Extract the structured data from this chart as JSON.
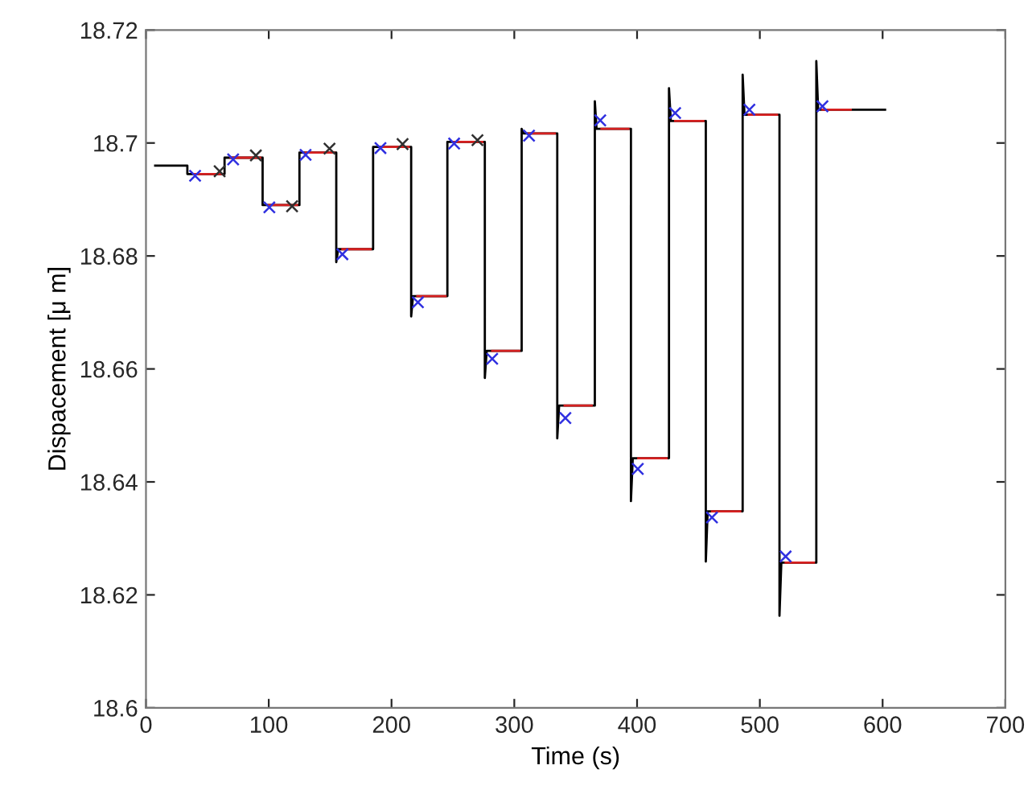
{
  "chart_data": {
    "type": "line",
    "xlabel": "Time (s)",
    "ylabel": "Dispacement [μ m]",
    "xlim": [
      0,
      700
    ],
    "ylim": [
      18.6,
      18.72
    ],
    "xticks": [
      0,
      100,
      200,
      300,
      400,
      500,
      600,
      700
    ],
    "yticks": [
      18.6,
      18.62,
      18.64,
      18.66,
      18.68,
      18.7,
      18.72
    ],
    "grid": false,
    "legend": false,
    "series": [
      {
        "color": "#000000",
        "marker": "none",
        "line_style": "solid",
        "x": [
          7.5,
          33.7,
          33.7,
          64,
          64,
          95,
          95,
          96.5,
          125,
          125,
          155,
          155,
          156.5,
          185,
          185,
          216,
          216,
          217.5,
          245.5,
          245.5,
          276,
          276,
          277.5,
          306,
          306,
          307.5,
          335,
          335,
          336.5,
          365.6,
          365.6,
          367,
          395,
          395,
          396.5,
          426,
          426,
          427.5,
          456,
          456,
          457.5,
          486,
          486,
          487.5,
          516,
          516,
          517.5,
          546,
          546,
          547.5,
          602
        ],
        "values": [
          18.696,
          18.696,
          18.6945,
          18.6945,
          18.6974,
          18.6974,
          18.689,
          18.689,
          18.689,
          18.6983,
          18.6983,
          18.6789,
          18.6812,
          18.6812,
          18.6993,
          18.6993,
          18.6693,
          18.6729,
          18.6729,
          18.7002,
          18.7002,
          18.6584,
          18.6632,
          18.6632,
          18.7025,
          18.7017,
          18.7017,
          18.6477,
          18.6535,
          18.6535,
          18.7074,
          18.7025,
          18.7025,
          18.6366,
          18.6442,
          18.6442,
          18.7097,
          18.7039,
          18.7039,
          18.6259,
          18.6348,
          18.6348,
          18.7121,
          18.705,
          18.705,
          18.6163,
          18.6257,
          18.6257,
          18.7145,
          18.7059,
          18.7059
        ]
      },
      {
        "type": "line",
        "color": "#d62020",
        "marker": "none",
        "line_style": "solid",
        "x": [
          39,
          62,
          null,
          69,
          93,
          null,
          100,
          123,
          null,
          130,
          153,
          null,
          160,
          183,
          null,
          191,
          214,
          null,
          221,
          244,
          null,
          251,
          274,
          null,
          282,
          304,
          null,
          312,
          333,
          null,
          341,
          363,
          null,
          371,
          393,
          null,
          401,
          424,
          null,
          431,
          454,
          null,
          461,
          484,
          null,
          491,
          514,
          null,
          521,
          544,
          null,
          551,
          574
        ],
        "values": [
          18.6945,
          18.6945,
          null,
          18.6974,
          18.6974,
          null,
          18.689,
          18.689,
          null,
          18.6983,
          18.6983,
          null,
          18.6812,
          18.6812,
          null,
          18.6993,
          18.6993,
          null,
          18.6729,
          18.6729,
          null,
          18.7002,
          18.7002,
          null,
          18.6632,
          18.6632,
          null,
          18.7017,
          18.7017,
          null,
          18.6535,
          18.6535,
          null,
          18.7025,
          18.7025,
          null,
          18.6442,
          18.6442,
          null,
          18.7039,
          18.7039,
          null,
          18.6348,
          18.6348,
          null,
          18.705,
          18.705,
          null,
          18.6257,
          18.6257,
          null,
          18.7059,
          18.7059
        ]
      },
      {
        "type": "scatter",
        "color": "#3030e0",
        "marker": "cross",
        "x": [
          40,
          71,
          100.5,
          130,
          160,
          191,
          221.5,
          251,
          282,
          312,
          341.6,
          370,
          400.6,
          431,
          461,
          491.5,
          521,
          551
        ],
        "values": [
          18.6942,
          18.6971,
          18.6886,
          18.6979,
          18.6803,
          18.6991,
          18.6718,
          18.6999,
          18.6618,
          18.7013,
          18.6513,
          18.704,
          18.6423,
          18.7053,
          18.6337,
          18.7059,
          18.6268,
          18.7065
        ]
      },
      {
        "type": "scatter",
        "color": "#303030",
        "marker": "cross",
        "x": [
          60,
          89.5,
          119,
          149.5,
          209,
          270
        ],
        "values": [
          18.695,
          18.6978,
          18.6888,
          18.699,
          18.6998,
          18.7005
        ]
      }
    ]
  }
}
